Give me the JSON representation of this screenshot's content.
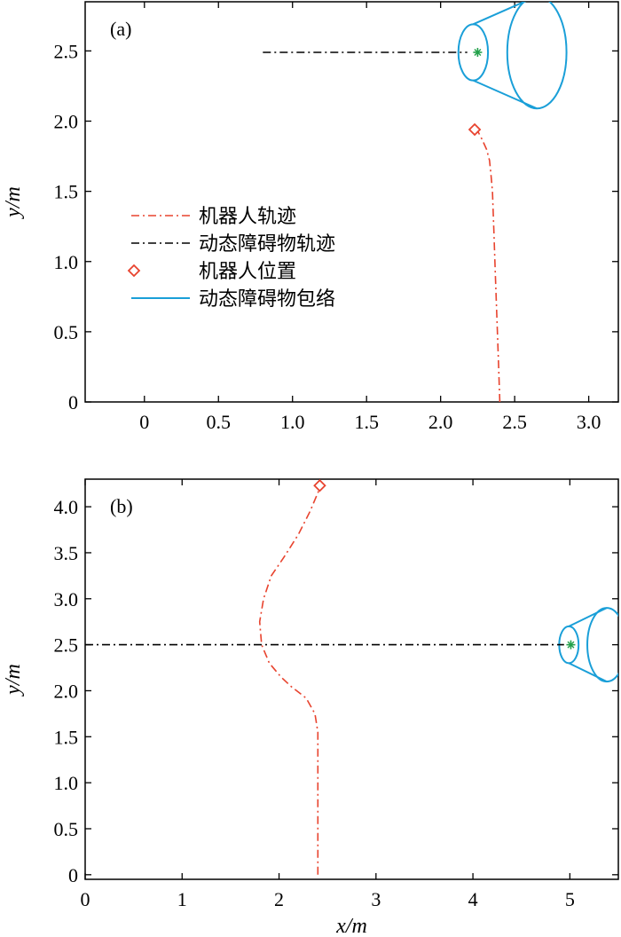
{
  "chart_data": [
    {
      "type": "line",
      "panel_label": "(a)",
      "xlabel": "",
      "ylabel": "y/m",
      "xlim": [
        -0.4,
        3.2
      ],
      "ylim": [
        0,
        2.85
      ],
      "xticks": [
        0,
        0.5,
        1.0,
        1.5,
        2.0,
        2.5,
        3.0
      ],
      "xtick_labels": [
        "0",
        "0.5",
        "1.0",
        "1.5",
        "2.0",
        "2.5",
        "3.0"
      ],
      "yticks": [
        0,
        0.5,
        1.0,
        1.5,
        2.0,
        2.5
      ],
      "ytick_labels": [
        "0",
        "0.5",
        "1.0",
        "1.5",
        "2.0",
        "2.5"
      ],
      "legend": {
        "placement": "center-left",
        "entries": [
          {
            "label": "机器人轨迹",
            "style": "dashdot",
            "color": "#e8432e"
          },
          {
            "label": "动态障碍物轨迹",
            "style": "dashdot",
            "color": "#000000"
          },
          {
            "label": "机器人位置",
            "style": "diamond",
            "color": "#e8432e"
          },
          {
            "label": "动态障碍物包络",
            "style": "solid",
            "color": "#1a9fd8"
          }
        ]
      },
      "series": [
        {
          "kind": "robot_trajectory",
          "color": "#e8432e",
          "points": [
            [
              2.4,
              0.0
            ],
            [
              2.39,
              0.3
            ],
            [
              2.38,
              0.6
            ],
            [
              2.37,
              0.9
            ],
            [
              2.36,
              1.2
            ],
            [
              2.35,
              1.5
            ],
            [
              2.34,
              1.62
            ],
            [
              2.33,
              1.72
            ],
            [
              2.31,
              1.8
            ],
            [
              2.28,
              1.87
            ],
            [
              2.25,
              1.93
            ]
          ]
        },
        {
          "kind": "obstacle_trajectory",
          "color": "#000000",
          "points": [
            [
              0.8,
              2.49
            ],
            [
              2.18,
              2.49
            ]
          ]
        },
        {
          "kind": "robot_position",
          "color": "#e8432e",
          "points": [
            [
              2.23,
              1.94
            ]
          ]
        },
        {
          "kind": "obstacle_center",
          "color": "#22a04a",
          "points": [
            [
              2.25,
              2.49
            ]
          ]
        }
      ],
      "obstacle_envelope": {
        "color": "#1a9fd8",
        "near_center": [
          2.22,
          2.49
        ],
        "near_rx": 0.1,
        "near_ry": 0.2,
        "far_center": [
          2.65,
          2.49
        ],
        "far_rx": 0.2,
        "far_ry": 0.4
      }
    },
    {
      "type": "line",
      "panel_label": "(b)",
      "xlabel": "x/m",
      "ylabel": "y/m",
      "xlim": [
        0,
        5.5
      ],
      "ylim": [
        -0.05,
        4.3
      ],
      "xticks": [
        0,
        1,
        2,
        3,
        4,
        5
      ],
      "xtick_labels": [
        "0",
        "1",
        "2",
        "3",
        "4",
        "5"
      ],
      "yticks": [
        0,
        0.5,
        1.0,
        1.5,
        2.0,
        2.5,
        3.0,
        3.5,
        4.0
      ],
      "ytick_labels": [
        "0",
        "0.5",
        "1.0",
        "1.5",
        "2.0",
        "2.5",
        "3.0",
        "3.5",
        "4.0"
      ],
      "series": [
        {
          "kind": "robot_trajectory",
          "color": "#e8432e",
          "points": [
            [
              2.4,
              0.0
            ],
            [
              2.4,
              0.6
            ],
            [
              2.4,
              1.2
            ],
            [
              2.4,
              1.55
            ],
            [
              2.37,
              1.75
            ],
            [
              2.28,
              1.92
            ],
            [
              2.12,
              2.05
            ],
            [
              2.02,
              2.15
            ],
            [
              1.9,
              2.3
            ],
            [
              1.82,
              2.5
            ],
            [
              1.8,
              2.75
            ],
            [
              1.84,
              3.0
            ],
            [
              1.92,
              3.25
            ],
            [
              2.05,
              3.45
            ],
            [
              2.2,
              3.7
            ],
            [
              2.32,
              3.95
            ],
            [
              2.42,
              4.2
            ]
          ]
        },
        {
          "kind": "obstacle_trajectory",
          "color": "#000000",
          "points": [
            [
              0.0,
              2.5
            ],
            [
              4.94,
              2.5
            ]
          ]
        },
        {
          "kind": "robot_position",
          "color": "#e8432e",
          "points": [
            [
              2.42,
              4.23
            ]
          ]
        },
        {
          "kind": "obstacle_center",
          "color": "#22a04a",
          "points": [
            [
              5.01,
              2.5
            ]
          ]
        }
      ],
      "obstacle_envelope": {
        "color": "#1a9fd8",
        "near_center": [
          4.99,
          2.5
        ],
        "near_rx": 0.1,
        "near_ry": 0.2,
        "far_center": [
          5.38,
          2.5
        ],
        "far_rx": 0.2,
        "far_ry": 0.4
      }
    }
  ]
}
